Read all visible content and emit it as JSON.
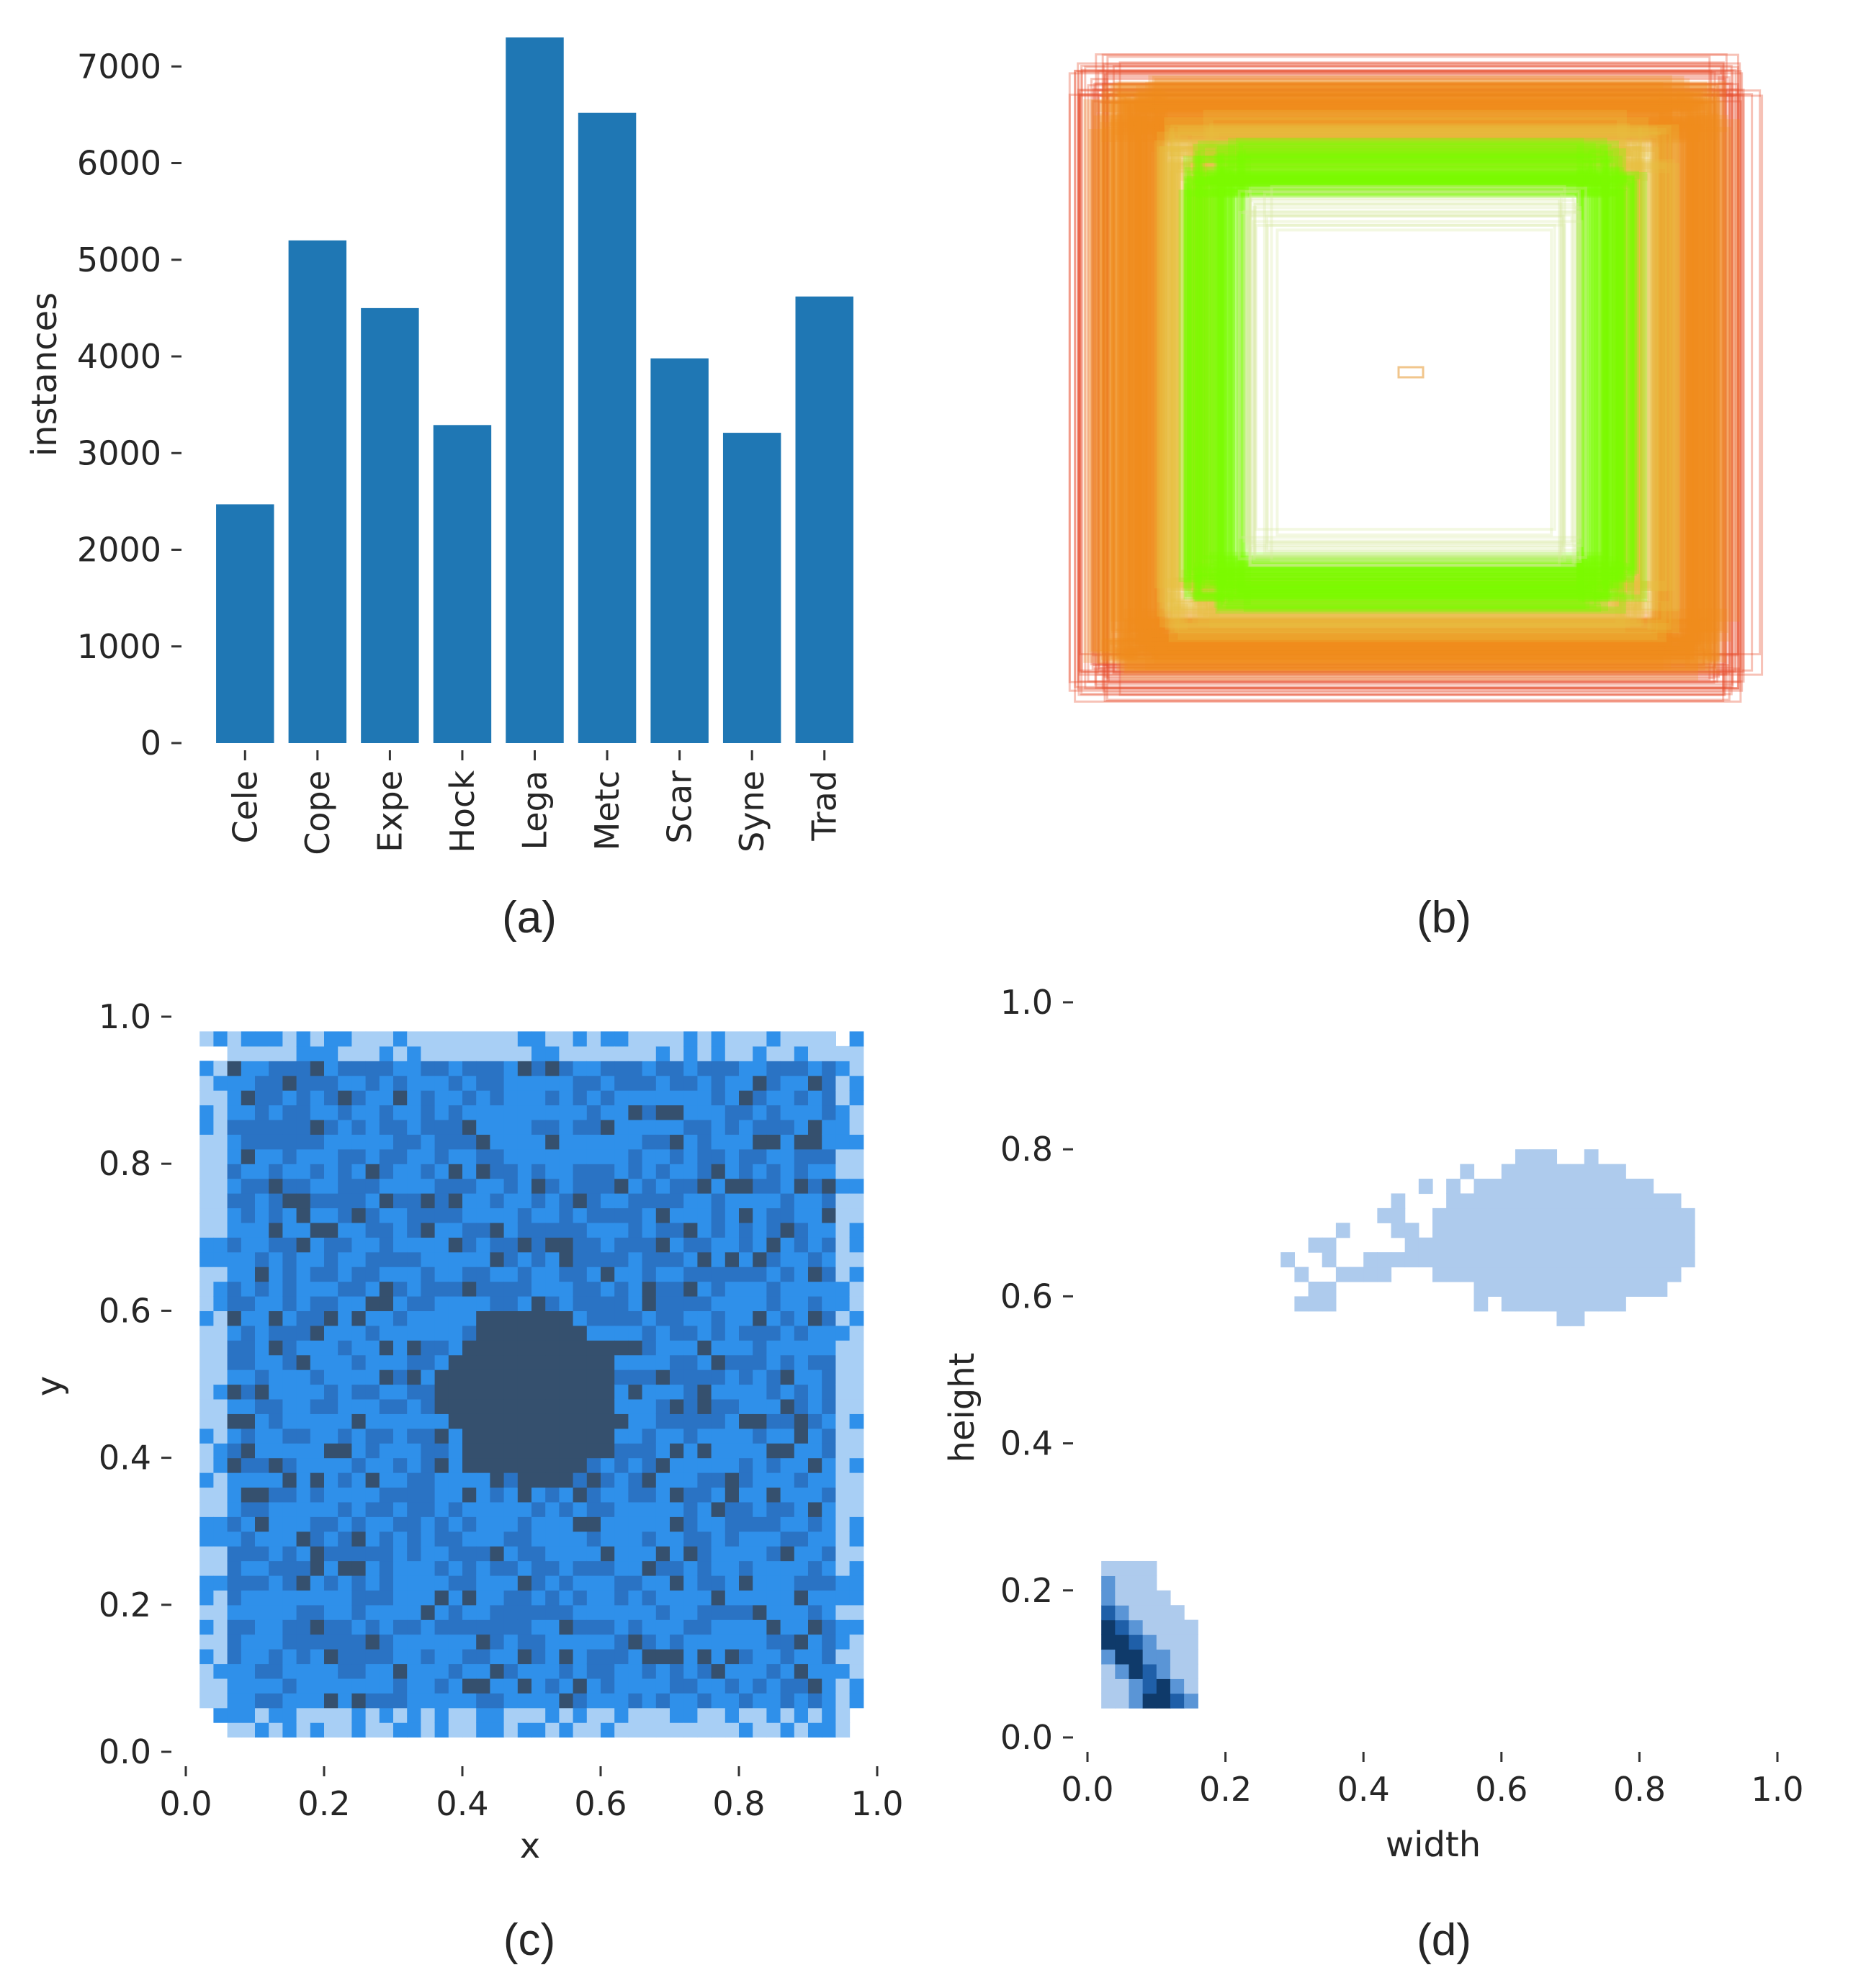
{
  "chart_data": [
    {
      "id": "a",
      "type": "bar",
      "panel_label": "(a)",
      "categories": [
        "Cele",
        "Cope",
        "Expe",
        "Hock",
        "Lega",
        "Metc",
        "Scar",
        "Syne",
        "Trad"
      ],
      "values": [
        2470,
        5200,
        4500,
        3290,
        7300,
        6520,
        3980,
        3210,
        4620
      ],
      "ylabel": "instances",
      "xlabel": "",
      "ylim": [
        0,
        7300
      ],
      "yticks": [
        0,
        1000,
        2000,
        3000,
        4000,
        5000,
        6000,
        7000
      ],
      "color": "#1f77b4"
    },
    {
      "id": "b",
      "type": "other",
      "panel_label": "(b)",
      "description_kind": "overlaid bounding boxes",
      "colors": [
        "#ff8c00",
        "#7cfc00",
        "#e8c040",
        "#e85030"
      ]
    },
    {
      "id": "c",
      "type": "heatmap",
      "panel_label": "(c)",
      "xlabel": "x",
      "ylabel": "y",
      "xlim": [
        0,
        1
      ],
      "ylim": [
        0,
        1
      ],
      "xticks": [
        "0.0",
        "0.2",
        "0.4",
        "0.6",
        "0.8",
        "1.0"
      ],
      "yticks": [
        "0.0",
        "0.2",
        "0.4",
        "0.6",
        "0.8",
        "1.0"
      ],
      "support": {
        "x": [
          0.03,
          0.97
        ],
        "y": [
          0.03,
          0.97
        ]
      },
      "peak": {
        "x": 0.5,
        "y": 0.48
      },
      "colors": [
        "#a8cff5",
        "#2f90ea",
        "#2a73c4",
        "#35506e"
      ]
    },
    {
      "id": "d",
      "type": "heatmap",
      "panel_label": "(d)",
      "xlabel": "width",
      "ylabel": "height",
      "xlim": [
        0,
        1
      ],
      "ylim": [
        0,
        1
      ],
      "xticks": [
        "0.0",
        "0.2",
        "0.4",
        "0.6",
        "0.8",
        "1.0"
      ],
      "yticks": [
        "0.0",
        "0.2",
        "0.4",
        "0.6",
        "0.8",
        "1.0"
      ],
      "clusters": [
        {
          "name": "large",
          "center": [
            0.68,
            0.68
          ],
          "spread": [
            0.18,
            0.1
          ]
        },
        {
          "name": "small",
          "center": [
            0.07,
            0.12
          ],
          "spread": [
            0.03,
            0.06
          ]
        }
      ],
      "colors": [
        "#aecbed",
        "#5a95d6",
        "#1f5fa8",
        "#0f3a6a"
      ]
    }
  ]
}
